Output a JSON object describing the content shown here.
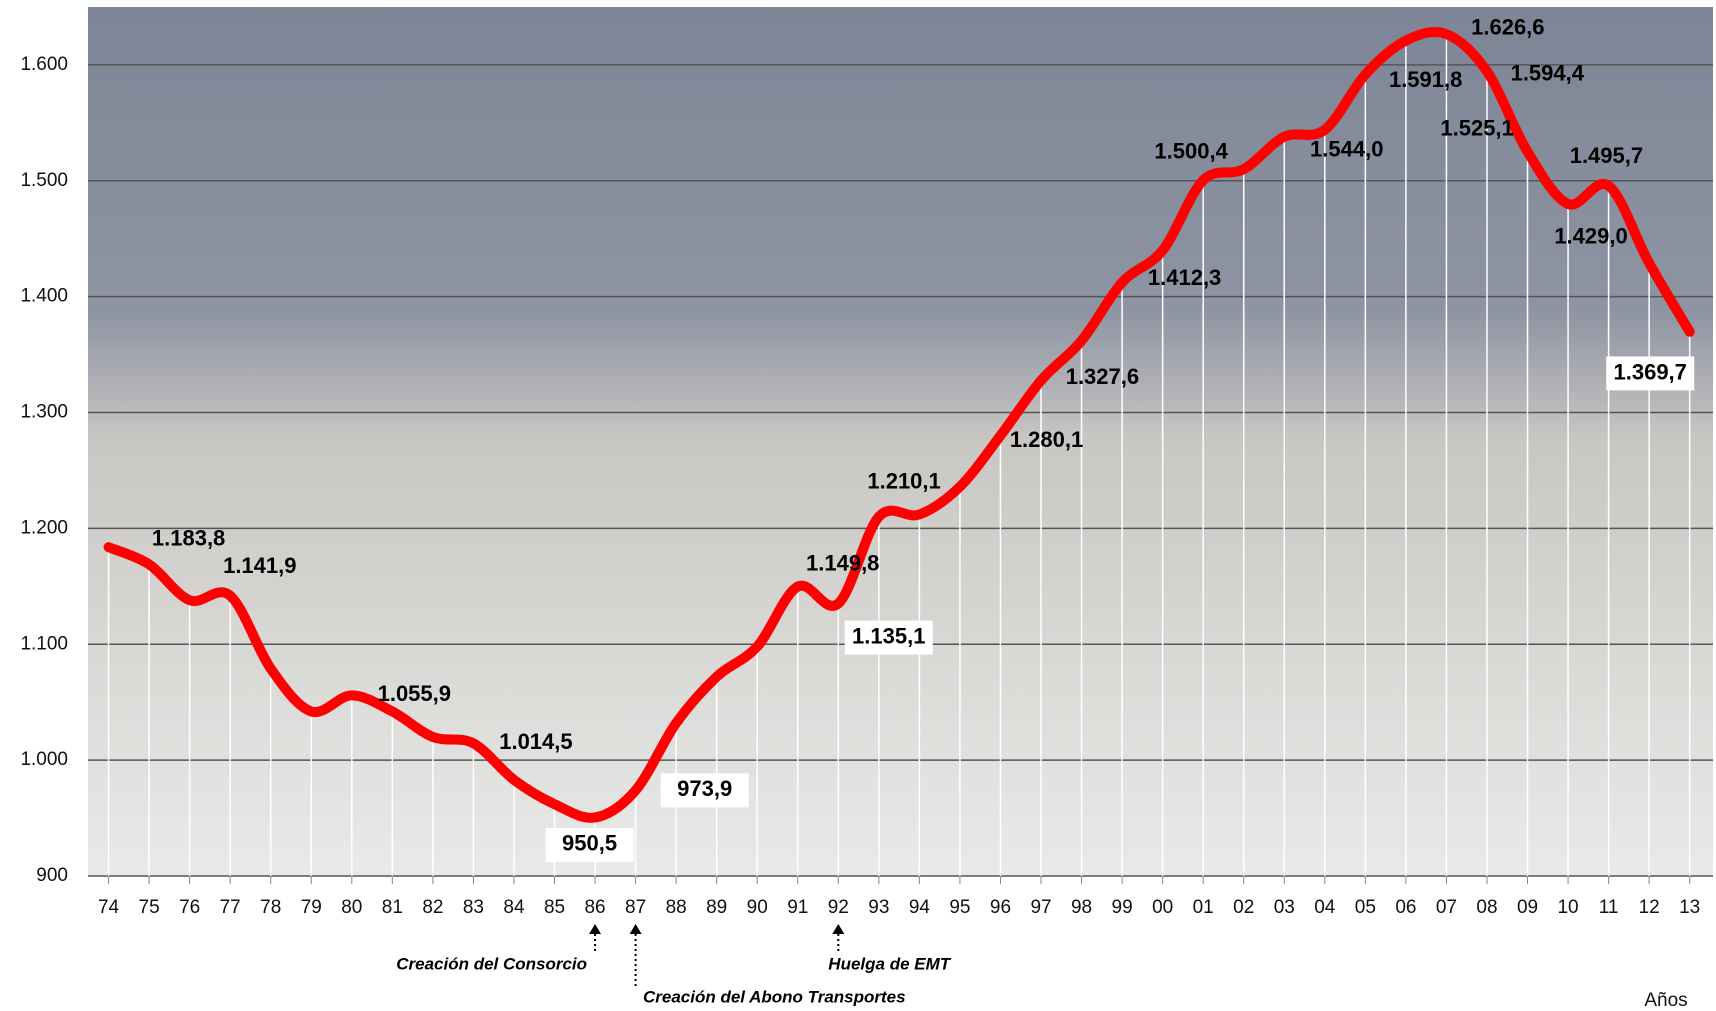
{
  "chart_data": {
    "type": "line",
    "categories": [
      "74",
      "75",
      "76",
      "77",
      "78",
      "79",
      "80",
      "81",
      "82",
      "83",
      "84",
      "85",
      "86",
      "87",
      "88",
      "89",
      "90",
      "91",
      "92",
      "93",
      "94",
      "95",
      "96",
      "97",
      "98",
      "99",
      "00",
      "01",
      "02",
      "03",
      "04",
      "05",
      "06",
      "07",
      "08",
      "09",
      "10",
      "11",
      "12",
      "13"
    ],
    "values": [
      1183.8,
      1169,
      1138,
      1141.9,
      1079,
      1042,
      1055.9,
      1042,
      1020,
      1014.5,
      983,
      962,
      950.5,
      973.9,
      1032,
      1072,
      1098,
      1149.8,
      1135.1,
      1210.1,
      1212,
      1236,
      1280.1,
      1327.6,
      1362,
      1412.3,
      1440,
      1500.4,
      1510,
      1538,
      1544.0,
      1591.8,
      1621,
      1626.6,
      1594.4,
      1525.1,
      1480,
      1495.7,
      1429.0,
      1369.7
    ],
    "value_labels": [
      "1.183,8",
      null,
      null,
      "1.141,9",
      null,
      null,
      "1.055,9",
      null,
      null,
      "1.014,5",
      null,
      null,
      "950,5",
      "973,9",
      null,
      null,
      null,
      "1.149,8",
      "1.135,1",
      "1.210,1",
      null,
      null,
      "1.280,1",
      "1.327,6",
      null,
      "1.412,3",
      null,
      "1.500,4",
      null,
      null,
      "1.544,0",
      "1.591,8",
      null,
      "1.626,6",
      "1.594,4",
      "1.525,1",
      null,
      "1.495,7",
      "1.429,0",
      "1.369,7"
    ],
    "color": "#ff0000",
    "ylim": [
      900,
      1650
    ],
    "yticks": [
      900,
      {
        "value": 1000,
        "label": "1.000"
      },
      {
        "value": 1100,
        "label": "1.100"
      },
      {
        "value": 1200,
        "label": "1.200"
      },
      {
        "value": 1300,
        "label": "1.300"
      },
      {
        "value": 1400,
        "label": "1.400"
      },
      {
        "value": 1500,
        "label": "1.500"
      },
      {
        "value": 1600,
        "label": "1.600"
      }
    ],
    "grid": true,
    "x_label": "Años",
    "annotations": [
      {
        "text": "Creación del Consorcio",
        "category": "86"
      },
      {
        "text": "Creación del Abono Transportes",
        "category": "87"
      },
      {
        "text": "Huelga de EMT",
        "category": "92"
      }
    ]
  }
}
